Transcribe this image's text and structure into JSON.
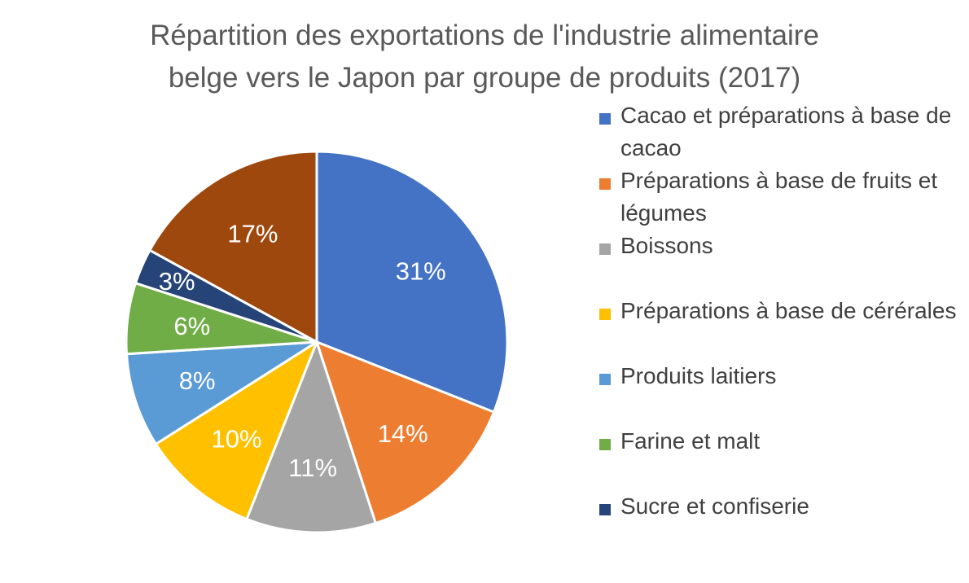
{
  "chart_data": {
    "type": "pie",
    "title_lines": [
      "Répartition des exportations de l'industrie alimentaire",
      "belge vers le Japon par groupe de produits (2017)"
    ],
    "legend_position": "right",
    "slices": [
      {
        "label": "Cacao et préparations à base de cacao",
        "value": 31,
        "display": "31%",
        "color": "#4472C4"
      },
      {
        "label": "Préparations à base de fruits et légumes",
        "value": 14,
        "display": "14%",
        "color": "#ED7D31"
      },
      {
        "label": "Boissons",
        "value": 11,
        "display": "11%",
        "color": "#A5A5A5"
      },
      {
        "label": "Préparations à base de cérérales",
        "value": 10,
        "display": "10%",
        "color": "#FFC000"
      },
      {
        "label": "Produits laitiers",
        "value": 8,
        "display": "8%",
        "color": "#5B9BD5"
      },
      {
        "label": "Farine et malt",
        "value": 6,
        "display": "6%",
        "color": "#70AD47"
      },
      {
        "label": "Sucre et confiserie",
        "value": 3,
        "display": "3%",
        "color": "#264478"
      },
      {
        "label": "",
        "value": 17,
        "display": "17%",
        "color": "#9E480E"
      }
    ]
  }
}
